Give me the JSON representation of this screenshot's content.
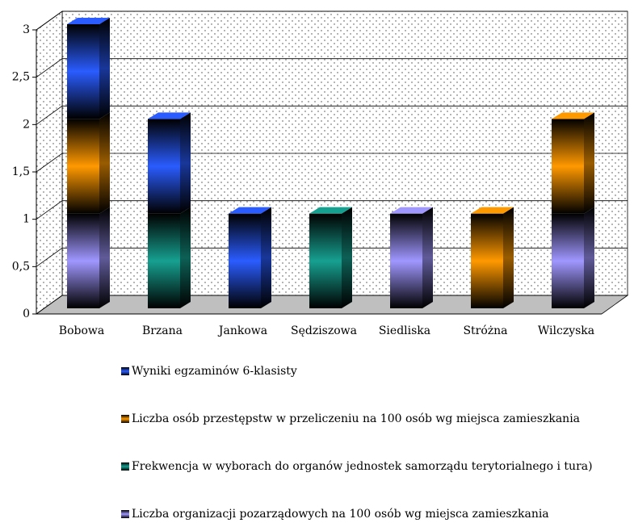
{
  "chart_data": {
    "type": "bar3d_stacked",
    "categories": [
      "Bobowa",
      "Brzana",
      "Jankowa",
      "Sędziszowa",
      "Siedliska",
      "Stróżna",
      "Wilczyska"
    ],
    "series": [
      {
        "name": "Wyniki egzaminów 6-klasisty",
        "color": "#2a5cff",
        "values": [
          1,
          1,
          1,
          0,
          0,
          0,
          0
        ]
      },
      {
        "name": "Liczba osób przestępstw w przeliczeniu na 100 osób wg miejsca zamieszkania",
        "color": "#ff9900",
        "values": [
          1,
          0,
          0,
          0,
          0,
          1,
          1
        ]
      },
      {
        "name": "Frekwencja w wyborach do organów jednostek samorządu terytorialnego i tura)",
        "color": "#16a090",
        "values": [
          0,
          1,
          0,
          1,
          0,
          0,
          0
        ]
      },
      {
        "name": "Liczba organizacji pozarządowych na 100 osób wg miejsca zamieszkania",
        "color": "#a097ff",
        "values": [
          1,
          0,
          0,
          0,
          1,
          0,
          1
        ]
      }
    ],
    "ylim": [
      0,
      3
    ],
    "yticks": [
      0,
      {
        "value": 0.5,
        "label": "0,5"
      },
      1,
      {
        "value": 1.5,
        "label": "1,5"
      },
      2,
      {
        "value": 2.5,
        "label": "2,5"
      },
      3
    ],
    "grid": true
  }
}
